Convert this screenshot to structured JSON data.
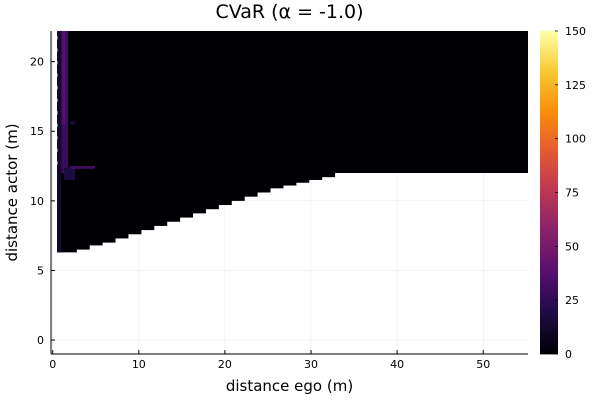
{
  "chart_data": {
    "type": "heatmap",
    "title": "CVaR (α = -1.0)",
    "xlabel": "distance ego (m)",
    "ylabel": "distance actor (m)",
    "xlim": [
      -0.2,
      55.2
    ],
    "ylim": [
      -1.0,
      22.2
    ],
    "xticks": [
      0,
      10,
      20,
      30,
      40,
      50
    ],
    "xtick_labels": [
      "0",
      "10",
      "20",
      "30",
      "40",
      "50"
    ],
    "yticks": [
      0,
      5,
      10,
      15,
      20
    ],
    "ytick_labels": [
      "0",
      "5",
      "10",
      "15",
      "20"
    ],
    "grid": true,
    "colormap": "inferno",
    "colorbar": {
      "range": [
        0,
        150
      ],
      "ticks": [
        0,
        25,
        50,
        75,
        100,
        125,
        150
      ],
      "tick_labels": [
        "0",
        "25",
        "50",
        "75",
        "100",
        "125",
        "150"
      ]
    },
    "cell_size": {
      "dx": 0.75,
      "dy": 0.2
    },
    "boundary_note_points": [
      [
        0.5,
        6.3
      ],
      [
        5,
        6.9
      ],
      [
        10,
        8.2
      ],
      [
        15,
        9.2
      ],
      [
        20,
        10.1
      ],
      [
        25,
        11.0
      ],
      [
        30,
        11.5
      ],
      [
        32,
        12.0
      ],
      [
        55.2,
        12.0
      ]
    ],
    "boundary": [
      [
        0.5,
        6.3
      ],
      [
        2.3,
        6.5
      ],
      [
        3.8,
        6.8
      ],
      [
        5.3,
        7.0
      ],
      [
        6.8,
        7.3
      ],
      [
        8.3,
        7.6
      ],
      [
        9.8,
        7.9
      ],
      [
        11.3,
        8.2
      ],
      [
        12.8,
        8.5
      ],
      [
        14.3,
        8.8
      ],
      [
        15.8,
        9.1
      ],
      [
        17.3,
        9.4
      ],
      [
        18.8,
        9.7
      ],
      [
        20.3,
        10.0
      ],
      [
        21.8,
        10.3
      ],
      [
        23.3,
        10.6
      ],
      [
        24.8,
        10.9
      ],
      [
        26.3,
        11.1
      ],
      [
        27.8,
        11.3
      ],
      [
        29.3,
        11.5
      ],
      [
        30.8,
        11.7
      ],
      [
        32.0,
        12.0
      ],
      [
        55.2,
        12.0
      ]
    ],
    "region_values": [
      {
        "region": "default",
        "value": 0
      },
      {
        "x": [
          1.0,
          1.8
        ],
        "y": [
          12.0,
          22.2
        ],
        "value": 28
      },
      {
        "x": [
          1.0,
          1.5
        ],
        "y": [
          15.5,
          22.2
        ],
        "value": 38
      },
      {
        "x": [
          1.3,
          2.6
        ],
        "y": [
          11.5,
          12.4
        ],
        "value": 18
      },
      {
        "x": [
          2.0,
          4.9
        ],
        "y": [
          12.3,
          12.5
        ],
        "value": 30
      },
      {
        "x": [
          0.5,
          1.0
        ],
        "y": [
          6.3,
          22.2
        ],
        "value": 12
      },
      {
        "x": [
          2.1,
          2.6
        ],
        "y": [
          15.5,
          15.7
        ],
        "value": 22
      }
    ]
  }
}
